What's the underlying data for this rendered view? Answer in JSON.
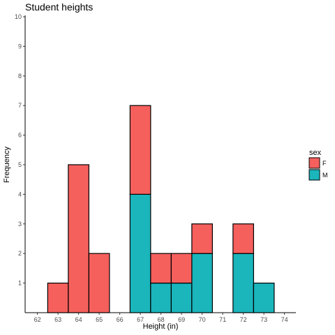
{
  "chart_data": {
    "type": "bar",
    "stacked": true,
    "title": "Student heights",
    "xlabel": "Height (in)",
    "ylabel": "Frequency",
    "x_ticks": [
      "62",
      "63",
      "64",
      "65",
      "66",
      "67",
      "68",
      "69",
      "70",
      "71",
      "72",
      "73",
      "74"
    ],
    "y_ticks": [
      "1",
      "2",
      "3",
      "4",
      "5",
      "6",
      "7",
      "8",
      "9",
      "10"
    ],
    "ylim": [
      0,
      10
    ],
    "grid": false,
    "legend": {
      "title": "sex",
      "position": "right"
    },
    "series": [
      {
        "name": "M",
        "color": "#1bb5bc",
        "points": [
          {
            "x": 67,
            "y": 4
          },
          {
            "x": 68,
            "y": 1
          },
          {
            "x": 69,
            "y": 1
          },
          {
            "x": 70,
            "y": 2
          },
          {
            "x": 72,
            "y": 2
          },
          {
            "x": 73,
            "y": 1
          }
        ]
      },
      {
        "name": "F",
        "color": "#f5605d",
        "points": [
          {
            "x": 63,
            "y": 1
          },
          {
            "x": 64,
            "y": 5
          },
          {
            "x": 65,
            "y": 2
          },
          {
            "x": 67,
            "y": 3
          },
          {
            "x": 68,
            "y": 1
          },
          {
            "x": 69,
            "y": 1
          },
          {
            "x": 70,
            "y": 1
          },
          {
            "x": 72,
            "y": 1
          }
        ]
      }
    ]
  }
}
